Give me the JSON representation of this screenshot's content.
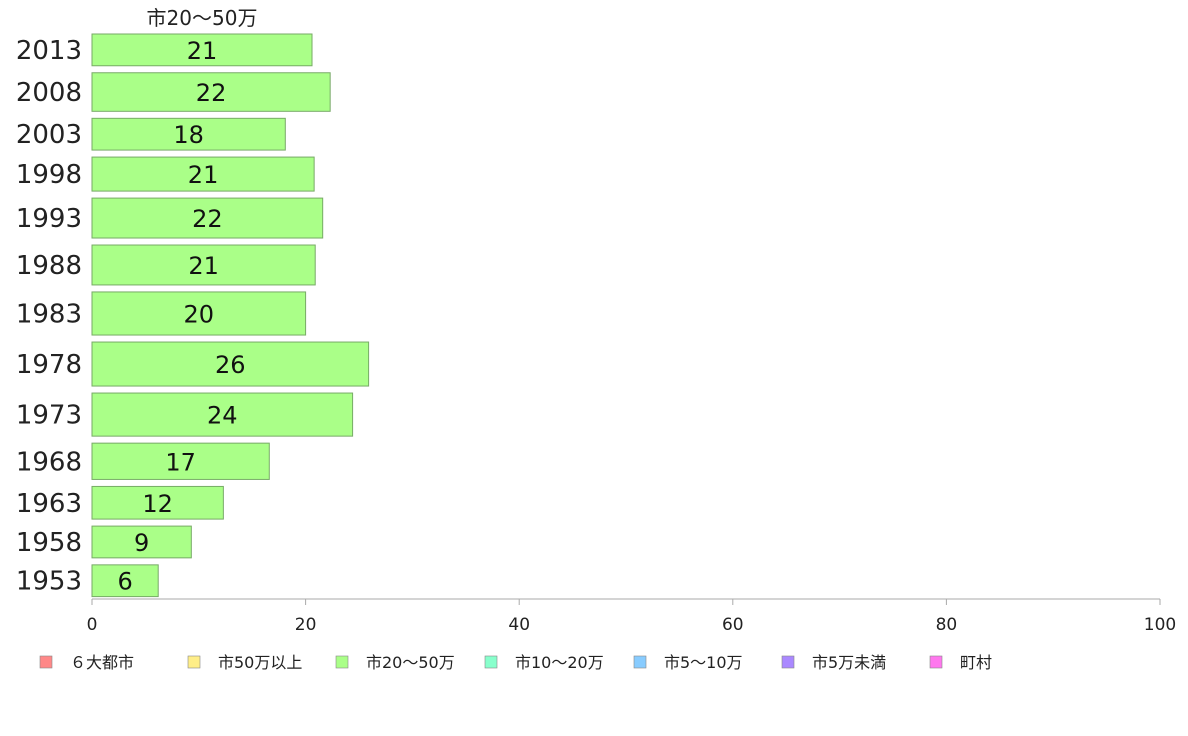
{
  "chart_data": {
    "type": "bar",
    "orientation": "horizontal",
    "title": "市20〜50万",
    "xlabel": "",
    "ylabel": "",
    "xlim": [
      0,
      100
    ],
    "x_ticks": [
      "0",
      "20",
      "40",
      "60",
      "80",
      "100"
    ],
    "x_tick_values": [
      0,
      20,
      40,
      60,
      80,
      100
    ],
    "categories": [
      "2013",
      "2008",
      "2003",
      "1998",
      "1993",
      "1988",
      "1983",
      "1978",
      "1973",
      "1968",
      "1963",
      "1958",
      "1953"
    ],
    "values": [
      20.6,
      22.3,
      18.1,
      20.8,
      21.6,
      20.9,
      20.0,
      25.9,
      24.4,
      16.6,
      12.3,
      9.3,
      6.2
    ],
    "labels": [
      "21",
      "22",
      "18",
      "21",
      "22",
      "21",
      "20",
      "26",
      "24",
      "17",
      "12",
      "9",
      "6"
    ],
    "relative_widths": [
      0.7,
      0.85,
      0.7,
      0.75,
      0.88,
      0.88,
      0.95,
      0.97,
      0.95,
      0.8,
      0.72,
      0.7,
      0.7
    ],
    "bar_color": "#aaff88",
    "bar_stroke": "#77aa66",
    "axis_color": "#aaaaaa",
    "grid": false,
    "legend_position": "bottom",
    "legend": [
      {
        "name": "６大都市",
        "color": "#ff8888"
      },
      {
        "name": "市50万以上",
        "color": "#ffee88"
      },
      {
        "name": "市20〜50万",
        "color": "#aaff88"
      },
      {
        "name": "市10〜20万",
        "color": "#88ffcc"
      },
      {
        "name": "市5〜10万",
        "color": "#88ccff"
      },
      {
        "name": "市5万未満",
        "color": "#aa88ff"
      },
      {
        "name": "町村",
        "color": "#ff77ee"
      }
    ]
  }
}
